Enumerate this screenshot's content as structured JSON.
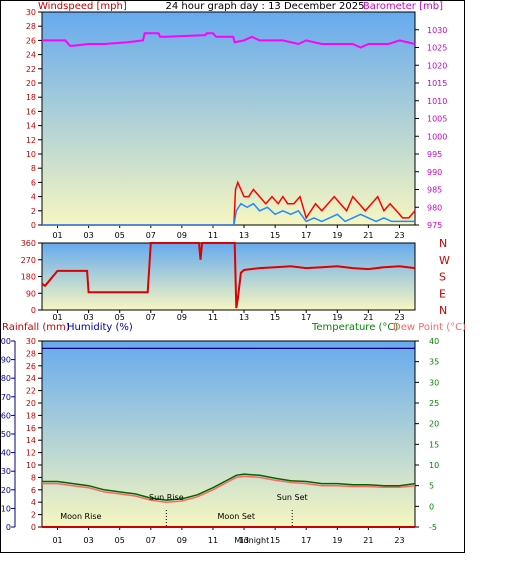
{
  "header": {
    "left_label": "Windspeed [mph]",
    "title": "24 hour graph day : 13 December 2025",
    "right_label": "Barometer [mb]"
  },
  "colors": {
    "wind": "#ff0000",
    "gust": "#ff0000",
    "avg_wind": "#1e8cff",
    "barometer": "#ff00ff",
    "direction": "#dd0000",
    "temperature": "#006600",
    "dewpoint": "#ff6666",
    "humidity": "#000080",
    "rain": "#cc0000",
    "label_red": "#cc0000",
    "label_magenta": "#cc00cc",
    "label_green": "#008800",
    "label_pink": "#ff6666",
    "label_blue": "#0000aa",
    "sky_top": "#66aaee",
    "sky_bottom": "#f6f6c0"
  },
  "chart_data": [
    {
      "id": "wind-baro",
      "type": "line",
      "ylabel": "Windspeed [mph]",
      "y2label": "Barometer [mb]",
      "ylim": [
        0,
        30
      ],
      "y2lim": [
        975,
        1035
      ],
      "yticks": [
        "0",
        "2",
        "4",
        "6",
        "8",
        "10",
        "12",
        "14",
        "16",
        "18",
        "20",
        "22",
        "24",
        "26",
        "28",
        "30"
      ],
      "y2ticks": [
        "975",
        "980",
        "985",
        "990",
        "995",
        "1000",
        "1005",
        "1010",
        "1015",
        "1020",
        "1025",
        "1030"
      ],
      "xticks": [
        "01",
        "03",
        "05",
        "07",
        "09",
        "11",
        "13",
        "15",
        "17",
        "19",
        "21",
        "23"
      ],
      "series": [
        {
          "key": "barometer",
          "axis": "y2",
          "x": [
            0,
            0.5,
            1.5,
            1.8,
            2.0,
            3.0,
            4.0,
            5.5,
            6.5,
            6.6,
            7.5,
            7.6,
            8.0,
            10.5,
            10.6,
            11.0,
            11.2,
            12.3,
            12.4,
            13.0,
            13.5,
            14.0,
            15.5,
            16.5,
            17.0,
            18.0,
            20.0,
            20.5,
            21.0,
            22.0,
            22.3,
            23.0,
            24.0
          ],
          "y": [
            1027,
            1027,
            1027,
            1025.5,
            1025.5,
            1026,
            1026,
            1026.5,
            1027,
            1029,
            1029,
            1028,
            1028,
            1028.5,
            1029,
            1029,
            1028,
            1028,
            1026.5,
            1027,
            1028,
            1027,
            1027,
            1026,
            1027,
            1026,
            1026,
            1025,
            1026,
            1026,
            1026,
            1027,
            1026
          ]
        },
        {
          "key": "wind",
          "axis": "y",
          "x": [
            0,
            12.35,
            12.45,
            12.6,
            12.8,
            13.0,
            13.3,
            13.6,
            14.0,
            14.4,
            14.8,
            15.2,
            15.5,
            15.8,
            16.2,
            16.6,
            17.0,
            17.3,
            17.6,
            18.0,
            18.4,
            18.8,
            19.2,
            19.6,
            20.0,
            20.4,
            20.8,
            21.2,
            21.6,
            22.0,
            22.4,
            22.8,
            23.2,
            23.6,
            24.0
          ],
          "y": [
            0,
            0,
            5,
            6,
            5,
            4,
            4,
            5,
            4,
            3,
            4,
            3,
            4,
            3,
            3,
            4,
            1,
            2,
            3,
            2,
            3,
            4,
            3,
            2,
            4,
            3,
            2,
            3,
            4,
            2,
            3,
            2,
            1,
            1,
            2
          ]
        },
        {
          "key": "avg_wind",
          "axis": "y",
          "x": [
            0,
            12.35,
            12.5,
            12.8,
            13.2,
            13.6,
            14.0,
            14.5,
            15.0,
            15.5,
            16.0,
            16.5,
            17.0,
            17.5,
            18.0,
            18.5,
            19.0,
            19.5,
            20.0,
            20.5,
            21.0,
            21.5,
            22.0,
            22.5,
            23.0,
            23.5,
            24.0
          ],
          "y": [
            0,
            0,
            2,
            3,
            2.5,
            3,
            2,
            2.5,
            1.5,
            2,
            1.5,
            2,
            0.5,
            1,
            0.5,
            1,
            1.5,
            0.5,
            1,
            1.5,
            1,
            0.5,
            1,
            0.5,
            0.5,
            0.5,
            0.5
          ]
        }
      ]
    },
    {
      "id": "direction",
      "type": "line",
      "ylim": [
        0,
        360
      ],
      "yticks": [
        "0",
        "90",
        "180",
        "270",
        "360"
      ],
      "compass": [
        "N",
        "W",
        "S",
        "E",
        "N"
      ],
      "xticks": [
        "01",
        "03",
        "05",
        "07",
        "09",
        "11",
        "13",
        "15",
        "17",
        "19",
        "21",
        "23"
      ],
      "series": [
        {
          "key": "direction",
          "x": [
            0,
            0.2,
            0.5,
            1.0,
            2.9,
            3.0,
            6.8,
            7.0,
            10.1,
            10.2,
            10.3,
            10.4,
            12.4,
            12.5,
            12.6,
            12.8,
            13.0,
            14.0,
            15.0,
            16.0,
            17.0,
            18.0,
            19.0,
            20.0,
            21.0,
            22.0,
            23.0,
            24.0
          ],
          "y": [
            140,
            130,
            160,
            210,
            210,
            95,
            95,
            360,
            360,
            270,
            360,
            360,
            360,
            10,
            60,
            200,
            215,
            225,
            230,
            235,
            225,
            230,
            235,
            225,
            220,
            230,
            235,
            225
          ]
        }
      ]
    },
    {
      "id": "temp-hum-rain",
      "type": "line",
      "ylabel": "Rainfall (mm)",
      "ylabel2": "Humidity (%)",
      "y2label": "Temperature (°C)",
      "y2label2": "Dew Point (°C)",
      "ylim_hum": [
        0,
        100
      ],
      "ylim_rain": [
        0,
        30
      ],
      "y2lim": [
        -5,
        40
      ],
      "hum_ticks": [
        "0",
        "10",
        "20",
        "30",
        "40",
        "50",
        "60",
        "70",
        "80",
        "90",
        "100"
      ],
      "rain_ticks": [
        "0",
        "2",
        "4",
        "6",
        "8",
        "10",
        "12",
        "14",
        "16",
        "18",
        "20",
        "22",
        "24",
        "26",
        "28",
        "30"
      ],
      "temp_ticks": [
        "-5",
        "0",
        "5",
        "10",
        "15",
        "20",
        "25",
        "30",
        "35",
        "40"
      ],
      "xticks": [
        "01",
        "03",
        "05",
        "07",
        "09",
        "11",
        "13",
        "15",
        "17",
        "19",
        "21",
        "23"
      ],
      "series": [
        {
          "key": "humidity",
          "x": [
            0,
            24
          ],
          "y": [
            96,
            96
          ]
        },
        {
          "key": "temperature",
          "x": [
            0,
            1,
            2,
            3,
            4,
            5,
            6,
            7,
            8,
            9,
            10,
            11,
            12,
            12.5,
            13,
            14,
            15,
            16,
            17,
            18,
            19,
            20,
            21,
            22,
            23,
            24
          ],
          "y": [
            6,
            6,
            5.5,
            5,
            4,
            3.5,
            3,
            2,
            1.5,
            1.8,
            2.8,
            4.5,
            6.5,
            7.5,
            7.8,
            7.5,
            6.8,
            6.2,
            6,
            5.5,
            5.5,
            5.2,
            5.2,
            5,
            5,
            5.5
          ]
        },
        {
          "key": "dewpoint",
          "x": [
            0,
            1,
            2,
            3,
            4,
            5,
            6,
            7,
            8,
            9,
            10,
            11,
            12,
            12.5,
            13,
            14,
            15,
            16,
            17,
            18,
            19,
            20,
            21,
            22,
            23,
            24
          ],
          "y": [
            5.5,
            5.5,
            5,
            4.5,
            3.5,
            3,
            2.5,
            1.5,
            1,
            1.3,
            2.3,
            4,
            6,
            7,
            7.3,
            7,
            6.3,
            5.8,
            5.5,
            5,
            5,
            4.8,
            4.8,
            4.6,
            4.6,
            5
          ]
        },
        {
          "key": "rain",
          "x": [
            0,
            24
          ],
          "y": [
            0,
            0
          ]
        }
      ],
      "annotations": [
        {
          "label": "Moon Rise",
          "x": 2.5,
          "level": "low"
        },
        {
          "label": "Sun Rise",
          "x": 8.0,
          "level": "high"
        },
        {
          "label": "Moon Set",
          "x": 12.5,
          "level": "low"
        },
        {
          "label": "Sun Set",
          "x": 16.1,
          "level": "high"
        }
      ],
      "xtick_overlay": {
        "label": "Midnight",
        "x": 13.5
      }
    }
  ]
}
